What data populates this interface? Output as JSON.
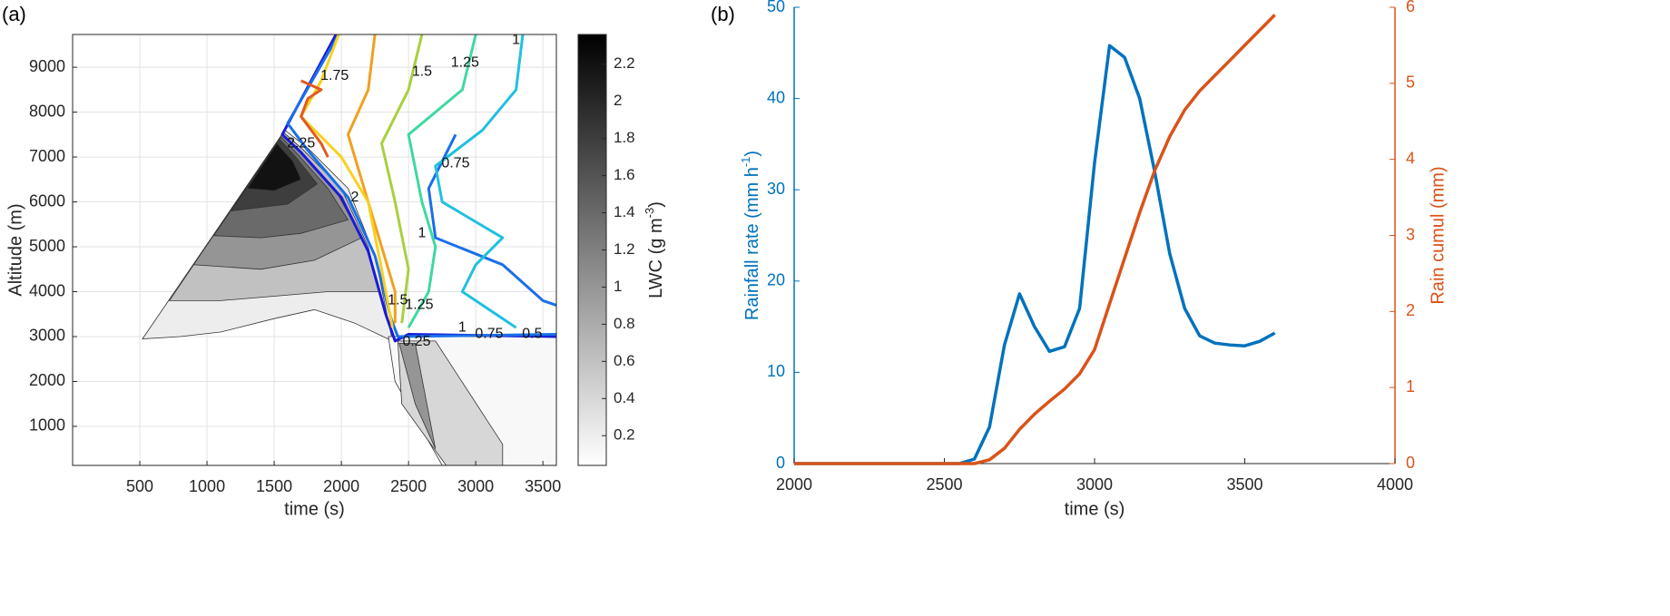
{
  "chart_data": [
    {
      "type": "contour",
      "panel_label": "(a)",
      "xlabel": "time (s)",
      "ylabel": "Altitude (m)",
      "xlim": [
        0,
        3600
      ],
      "ylim": [
        130,
        9730
      ],
      "xticks": [
        500,
        1000,
        1500,
        2000,
        2500,
        3000,
        3500
      ],
      "yticks": [
        1000,
        2000,
        3000,
        4000,
        5000,
        6000,
        7000,
        8000,
        9000
      ],
      "grid": true,
      "filled": [
        {
          "level": 0.2,
          "x": [
            520,
            1580,
            1750,
            2050,
            2250,
            2380,
            2100,
            1800,
            1500,
            1100,
            800
          ],
          "y": [
            2950,
            7600,
            7200,
            6300,
            4800,
            2900,
            3300,
            3600,
            3400,
            3100,
            3000
          ]
        },
        {
          "level": 0.6,
          "x": [
            720,
            1570,
            1720,
            2000,
            2200,
            2280,
            1900,
            1500,
            1100
          ],
          "y": [
            3800,
            7550,
            7150,
            6300,
            5000,
            4000,
            4000,
            3900,
            3800
          ]
        },
        {
          "level": 1.0,
          "x": [
            900,
            1560,
            1700,
            1950,
            2150,
            1800,
            1400
          ],
          "y": [
            4600,
            7500,
            7100,
            6300,
            5200,
            4700,
            4500
          ]
        },
        {
          "level": 1.4,
          "x": [
            1050,
            1550,
            1680,
            1900,
            2050,
            1700,
            1400
          ],
          "y": [
            5250,
            7450,
            7050,
            6300,
            5600,
            5300,
            5200
          ]
        },
        {
          "level": 1.8,
          "x": [
            1180,
            1540,
            1660,
            1820,
            1600
          ],
          "y": [
            5800,
            7400,
            7000,
            6400,
            5950
          ]
        },
        {
          "level": 2.2,
          "x": [
            1300,
            1520,
            1640,
            1700,
            1500
          ],
          "y": [
            6300,
            7300,
            6900,
            6500,
            6250
          ]
        },
        {
          "level": 0.1,
          "x": [
            2350,
            3600,
            3600,
            2750,
            2400
          ],
          "y": [
            3000,
            3000,
            130,
            130,
            2000
          ]
        },
        {
          "level": 0.4,
          "x": [
            2420,
            2700,
            3200,
            3200,
            2780,
            2450
          ],
          "y": [
            2900,
            2900,
            600,
            130,
            130,
            1500
          ]
        },
        {
          "level": 1.0,
          "x": [
            2430,
            2550,
            2700,
            2550
          ],
          "y": [
            2850,
            2850,
            500,
            1500
          ]
        }
      ],
      "contour_lines": [
        {
          "level": 0.5,
          "color": "#1a1ad8",
          "x": [
            1960,
            1560,
            1700,
            2000,
            2200,
            2330,
            2400,
            2500,
            3600
          ],
          "y": [
            9730,
            7500,
            7100,
            6100,
            4900,
            3500,
            2900,
            3050,
            3000
          ]
        },
        {
          "level": 0.75,
          "color": "#1a6fe8",
          "x": [
            1980,
            1600,
            1750,
            2050,
            2250,
            2370,
            2420,
            3600
          ],
          "y": [
            9730,
            7750,
            7150,
            6100,
            4800,
            3400,
            3000,
            3050
          ]
        },
        {
          "level": 0.75,
          "color": "#1a6fe8",
          "x": [
            2850,
            2650,
            2700,
            3200,
            3500,
            3600
          ],
          "y": [
            7500,
            6300,
            5200,
            4600,
            3800,
            3700
          ]
        },
        {
          "level": 1,
          "color": "#20c0e0",
          "x": [
            3350,
            3300,
            3050,
            2700,
            2750,
            3200,
            3000,
            2900,
            3300
          ],
          "y": [
            9730,
            8500,
            7600,
            6800,
            6000,
            5200,
            4600,
            4000,
            3200
          ]
        },
        {
          "level": 1.25,
          "color": "#40d8a0",
          "x": [
            3000,
            2900,
            2500,
            2600,
            2700,
            2650,
            2500
          ],
          "y": [
            9730,
            8500,
            7500,
            6000,
            5000,
            4000,
            3200
          ]
        },
        {
          "level": 1.5,
          "color": "#a8d040",
          "x": [
            2600,
            2500,
            2300,
            2400,
            2500,
            2450
          ],
          "y": [
            9730,
            8500,
            7300,
            6000,
            4500,
            3300
          ]
        },
        {
          "level": 1.75,
          "color": "#f0a020",
          "x": [
            2250,
            2200,
            2050,
            2200,
            2400,
            2400
          ],
          "y": [
            9730,
            8500,
            7500,
            6000,
            4000,
            3300
          ]
        },
        {
          "level": 2,
          "color": "#f8d020",
          "x": [
            1980,
            1850,
            1700,
            2000,
            2200,
            2300,
            2380
          ],
          "y": [
            9730,
            8700,
            7900,
            7000,
            6000,
            4500,
            3200
          ]
        },
        {
          "level": 2.25,
          "color": "#e05a20",
          "x": [
            1700,
            1850,
            1750,
            1700,
            1850,
            1900
          ],
          "y": [
            8700,
            8500,
            8300,
            7900,
            7300,
            7000
          ]
        }
      ],
      "contour_labels": [
        {
          "level": 1.75,
          "x": 1950,
          "y": 8800
        },
        {
          "level": 1.5,
          "x": 2600,
          "y": 8900
        },
        {
          "level": 1.25,
          "x": 2920,
          "y": 9100
        },
        {
          "level": 1,
          "x": 3300,
          "y": 9600
        },
        {
          "level": 0.75,
          "x": 2850,
          "y": 6850
        },
        {
          "level": 1,
          "x": 2600,
          "y": 5300
        },
        {
          "level": 2.25,
          "x": 1700,
          "y": 7300
        },
        {
          "level": 2,
          "x": 2100,
          "y": 6100
        },
        {
          "level": 1.25,
          "x": 2580,
          "y": 3700
        },
        {
          "level": 1.5,
          "x": 2420,
          "y": 3800
        },
        {
          "level": 1,
          "x": 2900,
          "y": 3200
        },
        {
          "level": 0.75,
          "x": 3100,
          "y": 3050
        },
        {
          "level": 0.25,
          "x": 2560,
          "y": 2880
        },
        {
          "level": 0.5,
          "x": 3420,
          "y": 3050
        }
      ],
      "colorbar": {
        "lim": [
          0.04,
          2.36
        ],
        "ticks": [
          0.2,
          0.4,
          0.6,
          0.8,
          1,
          1.2,
          1.4,
          1.6,
          1.8,
          2,
          2.2
        ],
        "label": [
          "LWC (g m",
          "-3",
          ")"
        ]
      }
    },
    {
      "type": "line",
      "panel_label": "(b)",
      "xlabel": "time (s)",
      "ylabel": [
        "Rainfall rate (mm h",
        "-1",
        ")"
      ],
      "y2label": "Rain cumul (mm)",
      "xlim": [
        2000,
        4000
      ],
      "xticks": [
        2000,
        2500,
        3000,
        3500,
        4000
      ],
      "ylim": [
        0,
        50
      ],
      "yticks": [
        0,
        10,
        20,
        30,
        40,
        50
      ],
      "y2lim": [
        0,
        6
      ],
      "y2ticks": [
        0,
        1,
        2,
        3,
        4,
        5,
        6
      ],
      "x": [
        2000,
        2050,
        2100,
        2150,
        2200,
        2250,
        2300,
        2350,
        2400,
        2450,
        2500,
        2550,
        2600,
        2650,
        2700,
        2750,
        2800,
        2850,
        2900,
        2950,
        3000,
        3050,
        3100,
        3150,
        3200,
        3250,
        3300,
        3350,
        3400,
        3450,
        3500,
        3550,
        3600
      ],
      "series": [
        {
          "color": "#0072bd",
          "values": [
            0,
            0,
            0,
            0,
            0,
            0,
            0,
            0,
            0,
            0,
            0,
            0,
            0.5,
            4,
            13,
            18.6,
            15,
            12.3,
            12.8,
            17,
            33,
            45.8,
            44.5,
            40,
            32,
            23,
            17,
            14,
            13.2,
            13,
            12.9,
            13.4,
            14.3
          ]
        },
        {
          "color": "#d95319",
          "axis": "y2",
          "values": [
            0,
            0,
            0,
            0,
            0,
            0,
            0,
            0,
            0,
            0,
            0,
            0,
            0,
            0.05,
            0.2,
            0.45,
            0.65,
            0.82,
            0.98,
            1.18,
            1.5,
            2.1,
            2.7,
            3.3,
            3.85,
            4.3,
            4.65,
            4.9,
            5.1,
            5.3,
            5.5,
            5.7,
            5.9
          ]
        }
      ]
    }
  ]
}
